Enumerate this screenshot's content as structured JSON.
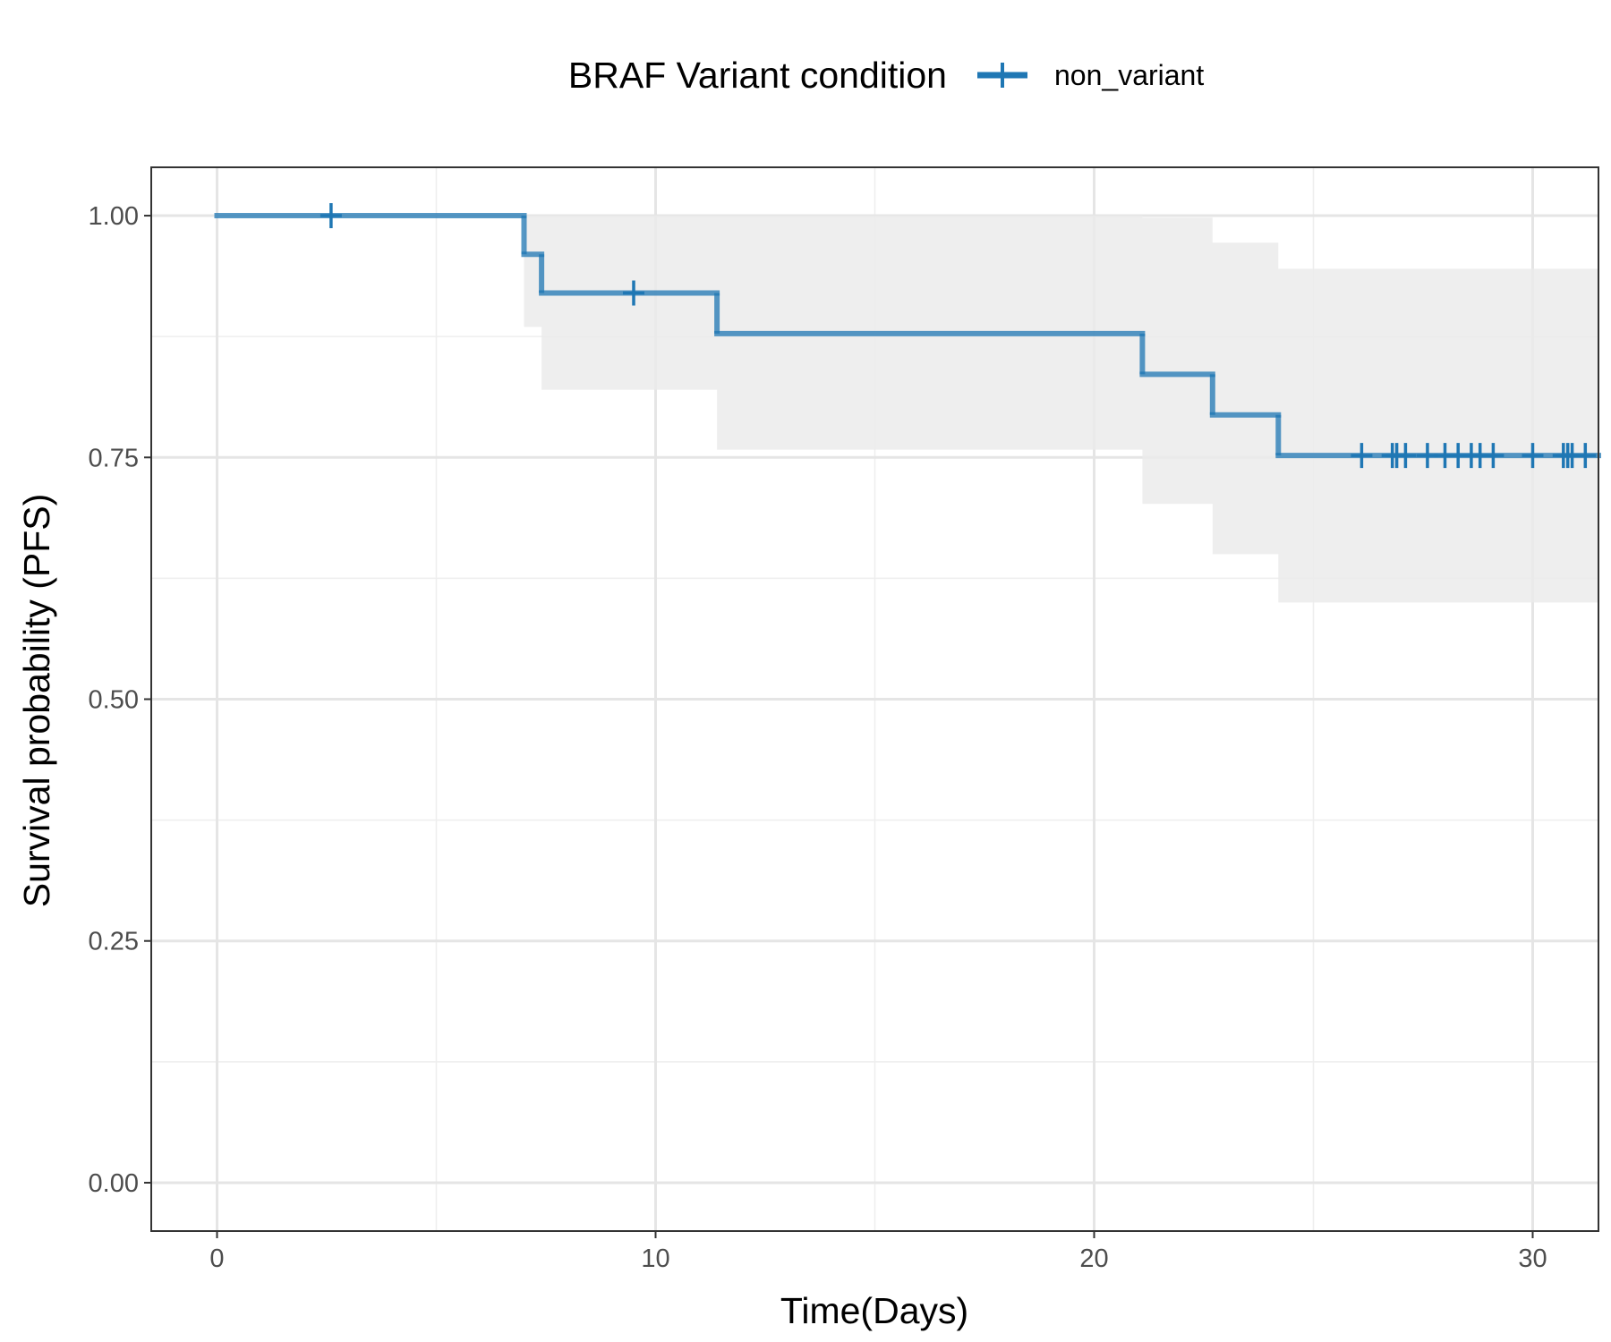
{
  "chart_data": {
    "type": "line",
    "subtype": "kaplan-meier",
    "xlabel": "Time(Days)",
    "ylabel": "Survival probability (PFS)",
    "xlim": [
      -1.5,
      31.5
    ],
    "ylim": [
      -0.05,
      1.05
    ],
    "x_ticks": [
      0,
      10,
      20,
      30
    ],
    "x_tick_labels": [
      "0",
      "10",
      "20",
      "30"
    ],
    "y_ticks": [
      0,
      0.25,
      0.5,
      0.75,
      1.0
    ],
    "y_tick_labels": [
      "0.00",
      "0.25",
      "0.50",
      "0.75",
      "1.00"
    ],
    "grid": true,
    "legend": {
      "title": "BRAF Variant condition",
      "position": "top",
      "entries": [
        "non_variant"
      ]
    },
    "series": [
      {
        "name": "non_variant",
        "color": "#1f77b4",
        "steps": [
          {
            "x": 0,
            "y": 1.0
          },
          {
            "x": 7.0,
            "y": 0.96
          },
          {
            "x": 7.4,
            "y": 0.92
          },
          {
            "x": 11.4,
            "y": 0.878
          },
          {
            "x": 21.1,
            "y": 0.836
          },
          {
            "x": 22.7,
            "y": 0.794
          },
          {
            "x": 24.2,
            "y": 0.752
          }
        ],
        "end_x": 31.5,
        "ci_lower": [
          {
            "x": 0,
            "y": 1.0
          },
          {
            "x": 7.0,
            "y": 0.885
          },
          {
            "x": 7.4,
            "y": 0.82
          },
          {
            "x": 11.4,
            "y": 0.758
          },
          {
            "x": 21.1,
            "y": 0.702
          },
          {
            "x": 22.7,
            "y": 0.65
          },
          {
            "x": 24.2,
            "y": 0.6
          }
        ],
        "ci_upper": [
          {
            "x": 0,
            "y": 1.0
          },
          {
            "x": 7.0,
            "y": 1.0
          },
          {
            "x": 7.4,
            "y": 1.0
          },
          {
            "x": 11.4,
            "y": 1.0
          },
          {
            "x": 21.1,
            "y": 0.998
          },
          {
            "x": 22.7,
            "y": 0.972
          },
          {
            "x": 24.2,
            "y": 0.945
          }
        ],
        "censored": [
          {
            "x": 2.6,
            "y": 1.0
          },
          {
            "x": 9.5,
            "y": 0.92
          },
          {
            "x": 26.1,
            "y": 0.752
          },
          {
            "x": 26.8,
            "y": 0.752
          },
          {
            "x": 26.9,
            "y": 0.752
          },
          {
            "x": 27.1,
            "y": 0.752
          },
          {
            "x": 27.6,
            "y": 0.752
          },
          {
            "x": 28.0,
            "y": 0.752
          },
          {
            "x": 28.3,
            "y": 0.752
          },
          {
            "x": 28.6,
            "y": 0.752
          },
          {
            "x": 28.8,
            "y": 0.752
          },
          {
            "x": 29.1,
            "y": 0.752
          },
          {
            "x": 30.0,
            "y": 0.752
          },
          {
            "x": 30.7,
            "y": 0.752
          },
          {
            "x": 30.8,
            "y": 0.752
          },
          {
            "x": 30.9,
            "y": 0.752
          },
          {
            "x": 31.2,
            "y": 0.752
          }
        ]
      }
    ],
    "ci_fill_color": "#ebebeb"
  }
}
